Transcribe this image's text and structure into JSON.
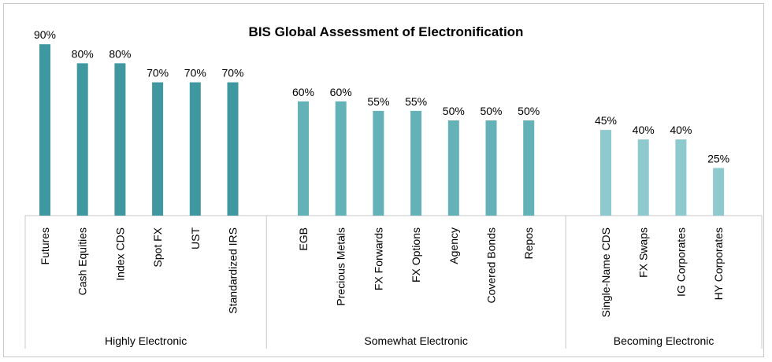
{
  "chart_data": {
    "type": "bar",
    "title": "BIS Global Assessment of Electronification",
    "xlabel": "",
    "ylabel": "",
    "ylim": [
      0,
      100
    ],
    "grid": false,
    "groups": [
      {
        "name": "Highly Electronic",
        "color": "#3f979f",
        "categories": [
          "Futures",
          "Cash Equities",
          "Index CDS",
          "Spot FX",
          "UST",
          "Standardized IRS"
        ],
        "values": [
          90,
          80,
          80,
          70,
          70,
          70
        ],
        "labels": [
          "90%",
          "80%",
          "80%",
          "70%",
          "70%",
          "70%"
        ]
      },
      {
        "name": "Somewhat Electronic",
        "color": "#64b1b8",
        "categories": [
          "EGB",
          "Precious Metals",
          "FX Forwards",
          "FX Options",
          "Agency",
          "Covered Bonds",
          "Repos"
        ],
        "values": [
          60,
          60,
          55,
          55,
          50,
          50,
          50
        ],
        "labels": [
          "60%",
          "60%",
          "55%",
          "55%",
          "50%",
          "50%",
          "50%"
        ]
      },
      {
        "name": "Becoming Electronic",
        "color": "#8ec9ce",
        "categories": [
          "Single-Name CDS",
          "FX Swaps",
          "IG Corporates",
          "HY Corporates"
        ],
        "values": [
          45,
          40,
          40,
          25
        ],
        "labels": [
          "45%",
          "40%",
          "40%",
          "25%"
        ]
      }
    ]
  }
}
